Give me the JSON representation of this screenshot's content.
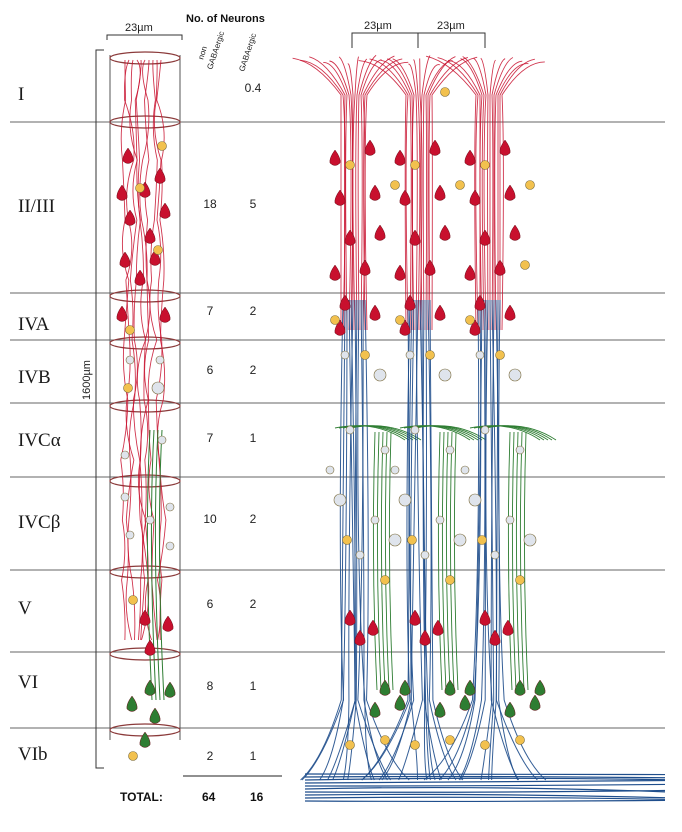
{
  "header": {
    "column_width_label": "23µm",
    "neurons_title": "No. of Neurons",
    "non_gaba_label_line1": "non",
    "non_gaba_label_line2": "GABAergic",
    "gaba_label": "GABAergic",
    "depth_label": "1600µm",
    "right_width_label_1": "23µm",
    "right_width_label_2": "23µm"
  },
  "layers": [
    {
      "name": "I",
      "non_gaba": "",
      "gaba": "0.4"
    },
    {
      "name": "II/III",
      "non_gaba": "18",
      "gaba": "5"
    },
    {
      "name": "IVA",
      "non_gaba": "7",
      "gaba": "2"
    },
    {
      "name": "IVB",
      "non_gaba": "6",
      "gaba": "2"
    },
    {
      "name": "IVCα",
      "non_gaba": "7",
      "gaba": "1"
    },
    {
      "name": "IVCβ",
      "non_gaba": "10",
      "gaba": "2"
    },
    {
      "name": "V",
      "non_gaba": "6",
      "gaba": "2"
    },
    {
      "name": "VI",
      "non_gaba": "8",
      "gaba": "1"
    },
    {
      "name": "VIb",
      "non_gaba": "2",
      "gaba": "1"
    }
  ],
  "totals": {
    "label": "TOTAL:",
    "non_gaba": "64",
    "gaba": "16"
  },
  "colors": {
    "pyramidal": "#c8102e",
    "gaba": "#f2c14e",
    "stellate": "#dfe4ec",
    "spiny_stellate": "#2e7d32",
    "axon_blue": "#1f4e8c",
    "layer_line": "#666666",
    "column_outline": "#8b3a3a"
  }
}
